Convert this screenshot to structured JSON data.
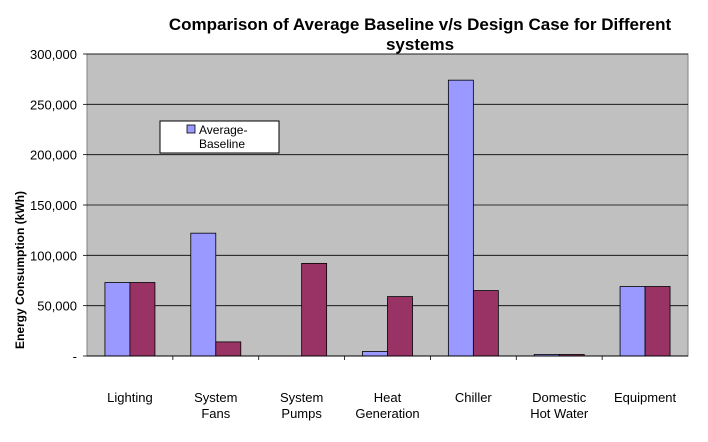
{
  "chart_data": {
    "type": "bar",
    "title_lines": [
      "Comparison of Average Baseline v/s Design Case for Different",
      "systems"
    ],
    "ylabel": "Energy Consumption (kWh)",
    "xlabel": "",
    "ylim": [
      0,
      300000
    ],
    "ytick_labels": [
      "-",
      "50,000",
      "100,000",
      "150,000",
      "200,000",
      "250,000",
      "300,000"
    ],
    "ytick_values": [
      0,
      50000,
      100000,
      150000,
      200000,
      250000,
      300000
    ],
    "grid": true,
    "legend_placement": "upper-left inside plot",
    "categories": [
      [
        "Lighting"
      ],
      [
        "System",
        "Fans"
      ],
      [
        "System",
        "Pumps"
      ],
      [
        "Heat",
        "Generation"
      ],
      [
        "Chiller"
      ],
      [
        "Domestic",
        "Hot Water"
      ],
      [
        "Equipment"
      ]
    ],
    "series": [
      {
        "name": "Average-Baseline",
        "legend_lines": [
          "Average-",
          "Baseline"
        ],
        "color": "#9999ff",
        "values": [
          73000,
          122000,
          0,
          4500,
          274000,
          1500,
          69000
        ]
      },
      {
        "values": [
          73000,
          14000,
          92000,
          59000,
          65000,
          1500,
          69000
        ],
        "color": "#993366"
      }
    ],
    "plot_background": "#c0c0c0"
  }
}
